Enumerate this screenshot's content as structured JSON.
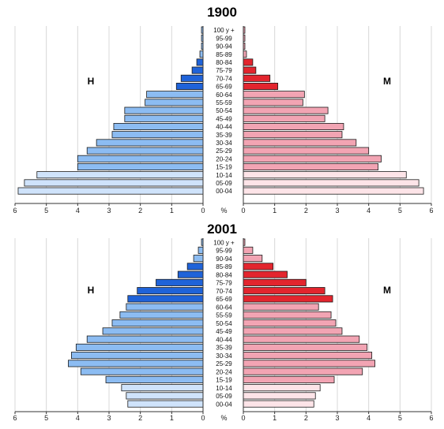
{
  "chart_data": [
    {
      "type": "bar",
      "title": "1900",
      "left_label": "H",
      "right_label": "M",
      "unit_label": "%",
      "xlim": [
        0,
        6
      ],
      "x_ticks": [
        "6",
        "5",
        "4",
        "3",
        "2",
        "1",
        "0",
        "0",
        "1",
        "2",
        "3",
        "4",
        "5",
        "6"
      ],
      "categories": [
        "100 y +",
        "95-99",
        "90-94",
        "85-89",
        "80-84",
        "75-79",
        "70-74",
        "65-69",
        "60-64",
        "55-59",
        "50-54",
        "45-49",
        "40-44",
        "35-39",
        "30-34",
        "25-29",
        "20-24",
        "15-19",
        "10-14",
        "05-09",
        "00-04"
      ],
      "series": [
        {
          "name": "H",
          "values": [
            0.05,
            0.05,
            0.05,
            0.1,
            0.2,
            0.35,
            0.7,
            0.85,
            1.8,
            1.85,
            2.5,
            2.5,
            2.85,
            2.9,
            3.4,
            3.7,
            4.0,
            4.0,
            5.3,
            5.7,
            5.9
          ]
        },
        {
          "name": "M",
          "values": [
            0.05,
            0.05,
            0.05,
            0.1,
            0.3,
            0.4,
            0.85,
            1.1,
            1.95,
            1.9,
            2.7,
            2.6,
            3.2,
            3.15,
            3.6,
            4.0,
            4.4,
            4.3,
            5.2,
            5.6,
            5.75
          ]
        }
      ],
      "colors": {
        "male_light": "#cfe3fb",
        "male_mid": "#8cbcf2",
        "male_dark": "#1f63d9",
        "female_light": "#fde4e8",
        "female_mid": "#f2a4b3",
        "female_dark": "#e3252e"
      }
    },
    {
      "type": "bar",
      "title": "2001",
      "left_label": "H",
      "right_label": "M",
      "unit_label": "%",
      "xlim": [
        0,
        6
      ],
      "x_ticks": [
        "6",
        "5",
        "4",
        "3",
        "2",
        "1",
        "0",
        "0",
        "1",
        "2",
        "3",
        "4",
        "5",
        "6"
      ],
      "categories": [
        "100 y +",
        "95-99",
        "90-94",
        "85-89",
        "80-84",
        "75-79",
        "70-74",
        "65-69",
        "60-64",
        "55-59",
        "50-54",
        "45-49",
        "40-44",
        "35-39",
        "30-34",
        "25-29",
        "20-24",
        "15-19",
        "10-14",
        "05-09",
        "00-04"
      ],
      "series": [
        {
          "name": "H",
          "values": [
            0.05,
            0.15,
            0.3,
            0.5,
            0.8,
            1.5,
            2.1,
            2.4,
            2.45,
            2.65,
            2.9,
            3.2,
            3.7,
            4.05,
            4.2,
            4.3,
            3.9,
            3.1,
            2.6,
            2.45,
            2.4
          ]
        },
        {
          "name": "M",
          "values": [
            0.05,
            0.3,
            0.6,
            0.95,
            1.4,
            2.0,
            2.6,
            2.85,
            2.4,
            2.8,
            2.95,
            3.15,
            3.7,
            3.95,
            4.1,
            4.2,
            3.8,
            2.9,
            2.45,
            2.3,
            2.25
          ]
        }
      ],
      "colors": {
        "male_light": "#cfe3fb",
        "male_mid": "#8cbcf2",
        "male_dark": "#1f63d9",
        "female_light": "#fde4e8",
        "female_mid": "#f2a4b3",
        "female_dark": "#e3252e"
      }
    }
  ]
}
